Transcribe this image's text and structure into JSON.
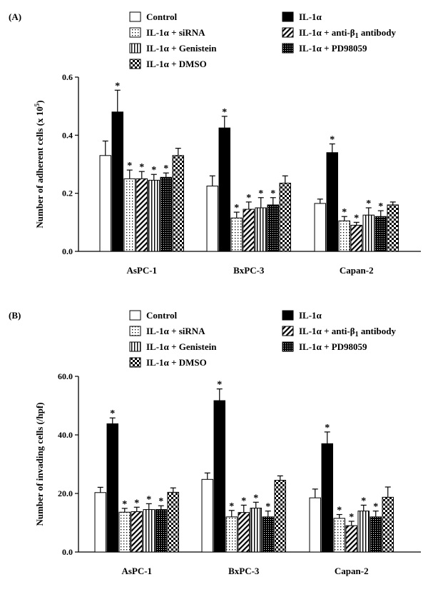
{
  "chart_data": [
    {
      "type": "bar",
      "panel_label": "(A)",
      "ylabel": "Number of adherent cells (x 10",
      "ylabel_sup": "5",
      "ylabel_end": ")",
      "ylim": [
        0,
        0.6
      ],
      "yticks": [
        "0.0",
        "0.2",
        "0.4",
        "0.6"
      ],
      "categories": [
        "AsPC-1",
        "BxPC-3",
        "Capan-2"
      ],
      "series": [
        {
          "name": "Control",
          "pattern": "white",
          "values": [
            0.33,
            0.225,
            0.165
          ],
          "errors": [
            0.05,
            0.035,
            0.015
          ],
          "sig": [
            false,
            false,
            false
          ]
        },
        {
          "name": "IL-1α",
          "pattern": "black",
          "values": [
            0.48,
            0.425,
            0.34
          ],
          "errors": [
            0.075,
            0.04,
            0.03
          ],
          "sig": [
            true,
            true,
            true
          ]
        },
        {
          "name": "IL-1α + siRNA",
          "pattern": "dots",
          "values": [
            0.25,
            0.115,
            0.105
          ],
          "errors": [
            0.03,
            0.02,
            0.015
          ],
          "sig": [
            true,
            true,
            true
          ]
        },
        {
          "name": "IL-1α + anti-β1 antibody",
          "pattern": "diag",
          "values": [
            0.25,
            0.145,
            0.09
          ],
          "errors": [
            0.025,
            0.025,
            0.01
          ],
          "sig": [
            true,
            true,
            true
          ]
        },
        {
          "name": "IL-1α + Genistein",
          "pattern": "vert",
          "values": [
            0.245,
            0.15,
            0.125
          ],
          "errors": [
            0.02,
            0.035,
            0.025
          ],
          "sig": [
            true,
            true,
            true
          ]
        },
        {
          "name": "IL-1α + PD98059",
          "pattern": "cross",
          "values": [
            0.255,
            0.16,
            0.12
          ],
          "errors": [
            0.015,
            0.025,
            0.02
          ],
          "sig": [
            true,
            true,
            true
          ]
        },
        {
          "name": "IL-1α + DMSO",
          "pattern": "checker",
          "values": [
            0.33,
            0.235,
            0.16
          ],
          "errors": [
            0.025,
            0.025,
            0.01
          ],
          "sig": [
            false,
            false,
            false
          ]
        }
      ]
    },
    {
      "type": "bar",
      "panel_label": "(B)",
      "ylabel": "Number of invading cells (/hpf)",
      "ylabel_sup": "",
      "ylabel_end": "",
      "ylim": [
        0,
        60
      ],
      "yticks": [
        "0.0",
        "20.0",
        "40.0",
        "60.0"
      ],
      "categories": [
        "AsPC-1",
        "BxPC-3",
        "Capan-2"
      ],
      "series": [
        {
          "name": "Control",
          "pattern": "white",
          "values": [
            20.3,
            24.8,
            18.5
          ],
          "errors": [
            1.8,
            2.2,
            3.0
          ],
          "sig": [
            false,
            false,
            false
          ]
        },
        {
          "name": "IL-1α",
          "pattern": "black",
          "values": [
            43.8,
            51.7,
            37.0
          ],
          "errors": [
            2.0,
            4.0,
            4.0
          ],
          "sig": [
            true,
            true,
            true
          ]
        },
        {
          "name": "IL-1α + siRNA",
          "pattern": "dots",
          "values": [
            13.6,
            12.0,
            11.5
          ],
          "errors": [
            1.3,
            2.2,
            1.3
          ],
          "sig": [
            true,
            true,
            true
          ]
        },
        {
          "name": "IL-1α + anti-β1 antibody",
          "pattern": "diag",
          "values": [
            13.8,
            13.5,
            9.0
          ],
          "errors": [
            1.5,
            2.5,
            1.5
          ],
          "sig": [
            true,
            true,
            true
          ]
        },
        {
          "name": "IL-1α + Genistein",
          "pattern": "vert",
          "values": [
            14.5,
            15.0,
            14.0
          ],
          "errors": [
            2.0,
            2.0,
            2.0
          ],
          "sig": [
            true,
            true,
            true
          ]
        },
        {
          "name": "IL-1α + PD98059",
          "pattern": "cross",
          "values": [
            14.5,
            12.0,
            12.0
          ],
          "errors": [
            1.3,
            2.0,
            2.0
          ],
          "sig": [
            true,
            true,
            true
          ]
        },
        {
          "name": "IL-1α + DMSO",
          "pattern": "checker",
          "values": [
            20.4,
            24.5,
            18.7
          ],
          "errors": [
            1.5,
            1.5,
            3.5
          ],
          "sig": [
            false,
            false,
            false
          ]
        }
      ]
    }
  ],
  "significance_marker": "*",
  "legend_layout": [
    [
      "Control",
      "IL-1α"
    ],
    [
      "IL-1α + siRNA",
      "IL-1α + anti-β1 antibody"
    ],
    [
      "IL-1α + Genistein",
      "IL-1α + PD98059"
    ],
    [
      "IL-1α + DMSO"
    ]
  ],
  "legend_labels": {
    "control": "Control",
    "il1a": "IL-1α",
    "sirna": "IL-1α + siRNA",
    "anti_prefix": "IL-1α + anti-β",
    "anti_sub": "1",
    "anti_suffix": " antibody",
    "genistein": "IL-1α + Genistein",
    "pd": "IL-1α + PD98059",
    "dmso": "IL-1α + DMSO"
  }
}
